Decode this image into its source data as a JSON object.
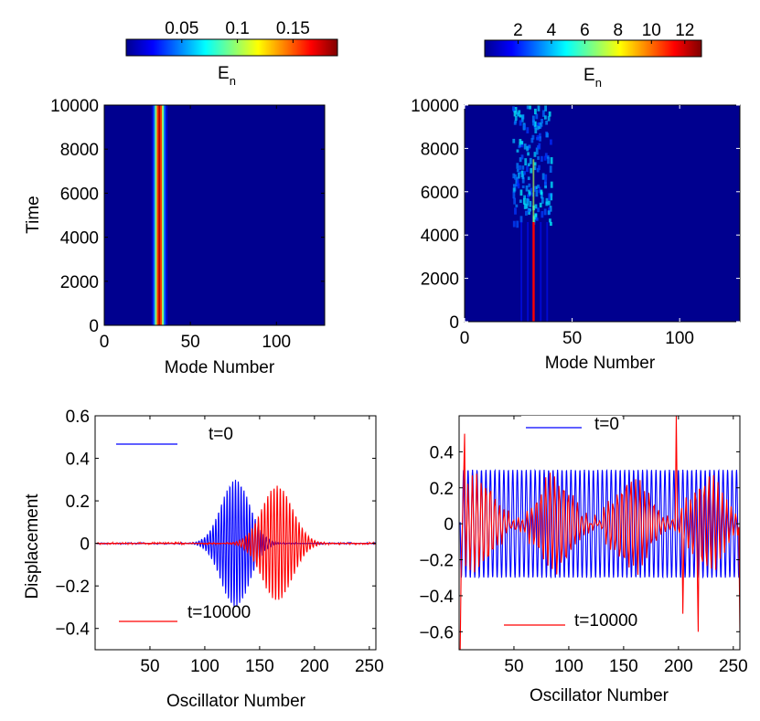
{
  "chart_data": [
    {
      "type": "heatmap",
      "panel": "top-left",
      "xlabel": "Mode Number",
      "ylabel": "Time",
      "xlim": [
        0,
        128
      ],
      "ylim": [
        0,
        10000
      ],
      "xticks": [
        0,
        50,
        100
      ],
      "yticks": [
        0,
        2000,
        4000,
        6000,
        8000,
        10000
      ],
      "colorbar": {
        "label": "E",
        "label_sub": "n",
        "ticks": [
          "0.05",
          "0.1",
          "0.15"
        ],
        "range": [
          0,
          0.19
        ]
      },
      "band": {
        "center_mode": 32,
        "peak": 0.18,
        "width": 1.8
      }
    },
    {
      "type": "heatmap",
      "panel": "top-right",
      "xlabel": "Mode Number",
      "ylabel": "",
      "xlim": [
        0,
        128
      ],
      "ylim": [
        0,
        10000
      ],
      "xticks": [
        0,
        50,
        100
      ],
      "yticks": [
        0,
        2000,
        4000,
        6000,
        8000,
        10000
      ],
      "colorbar": {
        "label": "E",
        "label_sub": "n",
        "ticks": [
          "2",
          "4",
          "6",
          "8",
          "10",
          "12"
        ],
        "range": [
          0,
          13
        ]
      },
      "line": {
        "mode": 32,
        "peak": 12,
        "until_time": 4600
      },
      "scatter_region": {
        "modes": [
          22,
          40
        ],
        "times": [
          4600,
          10000
        ]
      }
    },
    {
      "type": "line",
      "panel": "bottom-left",
      "xlabel": "Oscillator Number",
      "ylabel": "Displacement",
      "xlim": [
        0,
        256
      ],
      "ylim": [
        -0.5,
        0.6
      ],
      "xticks": [
        50,
        100,
        150,
        200,
        250
      ],
      "yticks": [
        -0.4,
        -0.2,
        0,
        0.2,
        0.4,
        0.6
      ],
      "series": [
        {
          "name": "t=0",
          "color": "#0000ff",
          "center": 128,
          "amplitude": 0.3,
          "sigma": 13,
          "k": 2.45,
          "noise": 0.003
        },
        {
          "name": "t=10000",
          "color": "#ff0000",
          "center": 166,
          "amplitude": 0.27,
          "sigma": 14,
          "k": 2.2,
          "noise": 0.004
        }
      ]
    },
    {
      "type": "line",
      "panel": "bottom-right",
      "xlabel": "Oscillator Number",
      "ylabel": "",
      "xlim": [
        0,
        256
      ],
      "ylim": [
        -0.7,
        0.6
      ],
      "xticks": [
        50,
        100,
        150,
        200,
        250
      ],
      "yticks": [
        -0.6,
        -0.4,
        -0.2,
        0,
        0.2,
        0.4
      ],
      "series": [
        {
          "name": "t=0",
          "color": "#0000ff",
          "amplitude": 0.3,
          "k": 1.54
        },
        {
          "name": "t=10000",
          "color": "#ff0000",
          "amplitude": 0.25,
          "k": 1.52,
          "min": -0.7,
          "max": 0.6
        }
      ]
    }
  ]
}
